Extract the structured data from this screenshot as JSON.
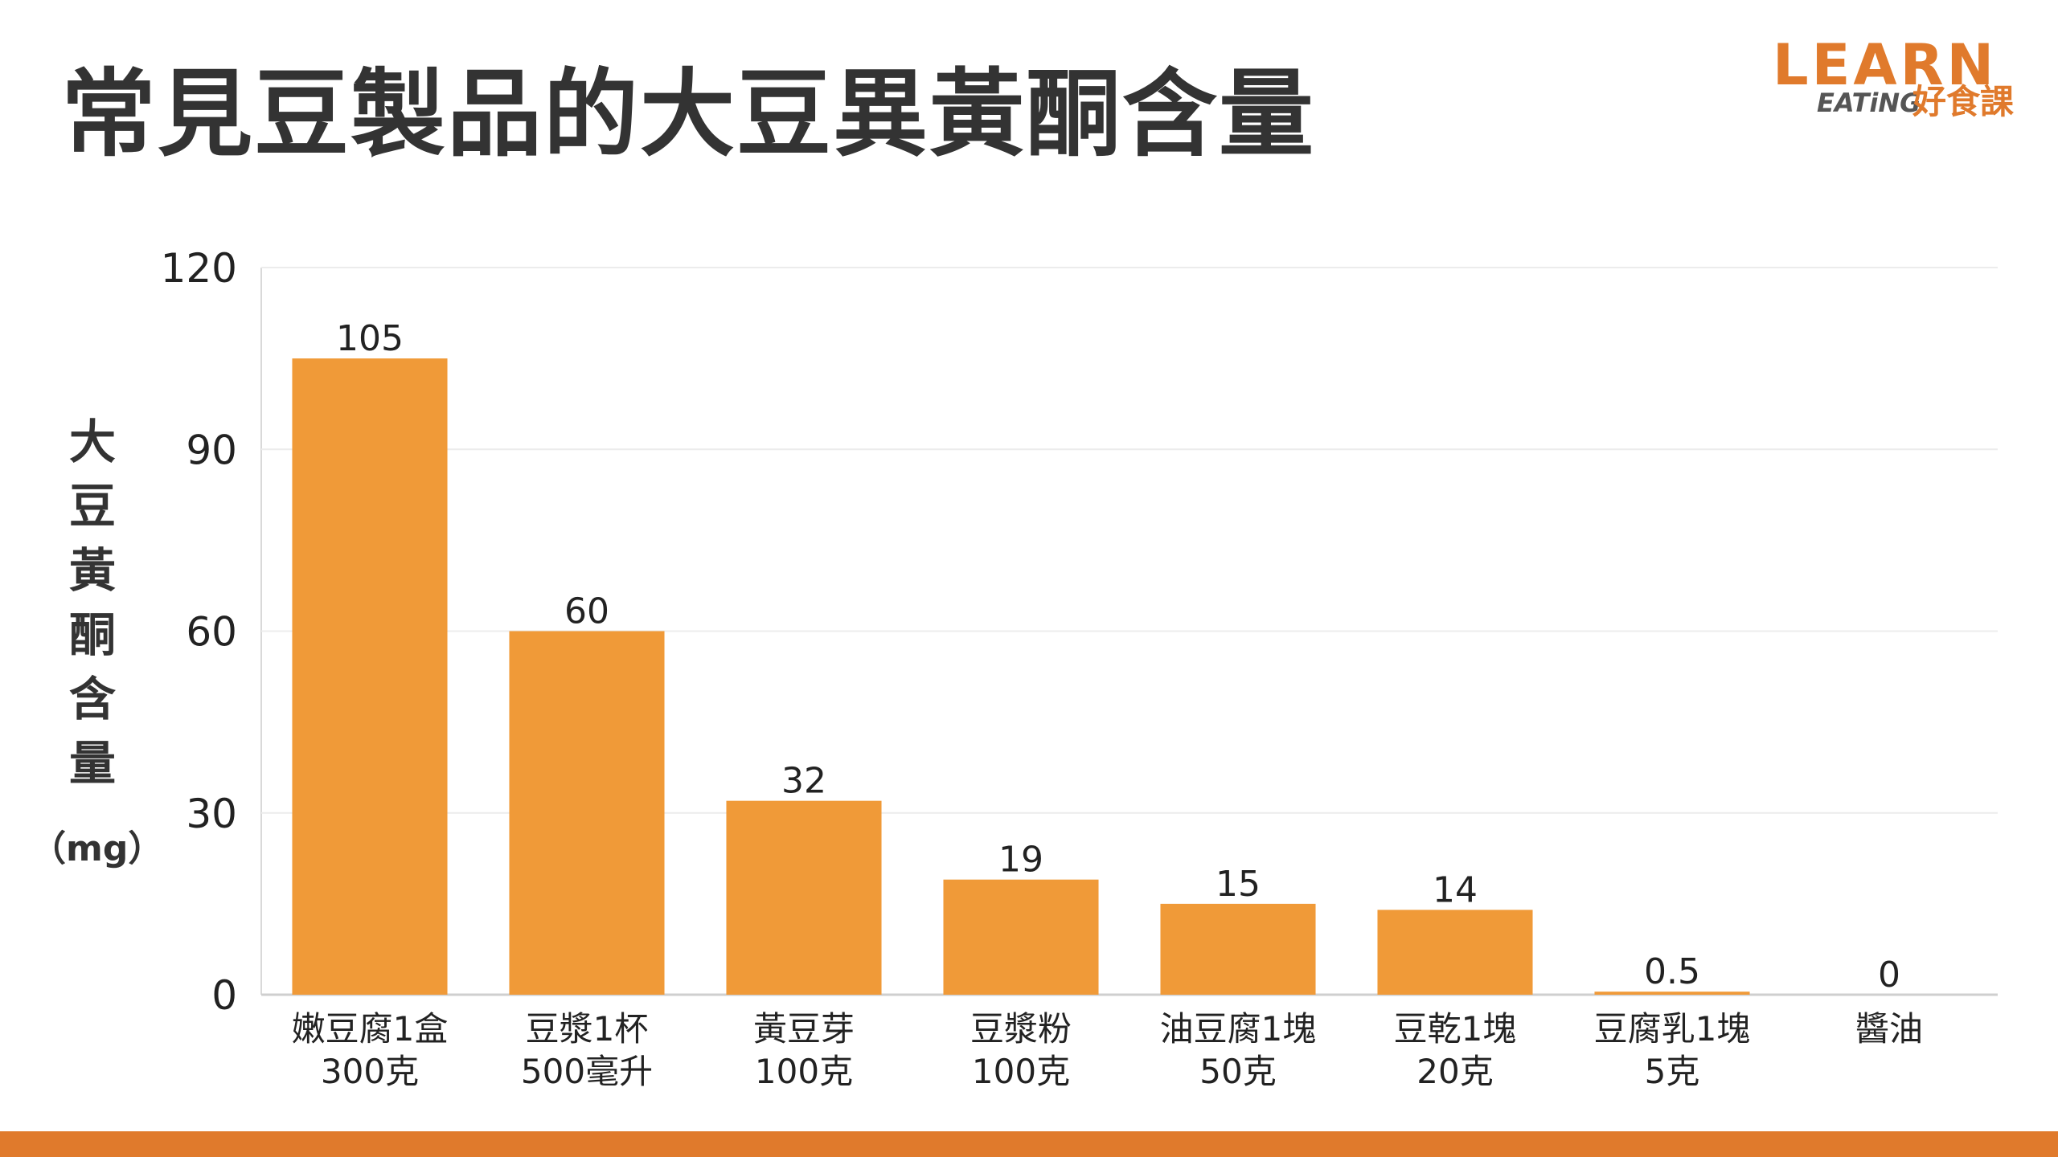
{
  "title": "常見豆製品的大豆異黃酮含量",
  "logo": {
    "learn": "LEARN",
    "eating": "EATiNG",
    "chinese": "好食課"
  },
  "colors": {
    "bar": "#f09a38",
    "accent": "#e07a2c",
    "text": "#333333"
  },
  "chart_data": {
    "type": "bar",
    "ylabel": "大豆黃酮含量",
    "yunit": "（mg）",
    "ylim": [
      0,
      120
    ],
    "yticks": [
      0,
      30,
      60,
      90,
      120
    ],
    "grid": true,
    "categories": [
      [
        "嫩豆腐1盒",
        "300克"
      ],
      [
        "豆漿1杯",
        "500毫升"
      ],
      [
        "黃豆芽",
        "100克"
      ],
      [
        "豆漿粉",
        "100克"
      ],
      [
        "油豆腐1塊",
        "50克"
      ],
      [
        "豆乾1塊",
        "20克"
      ],
      [
        "豆腐乳1塊",
        "5克"
      ],
      [
        "醬油"
      ]
    ],
    "values": [
      105,
      60,
      32,
      19,
      15,
      14,
      0.5,
      0
    ],
    "value_labels": [
      "105",
      "60",
      "32",
      "19",
      "15",
      "14",
      "0.5",
      "0"
    ]
  }
}
